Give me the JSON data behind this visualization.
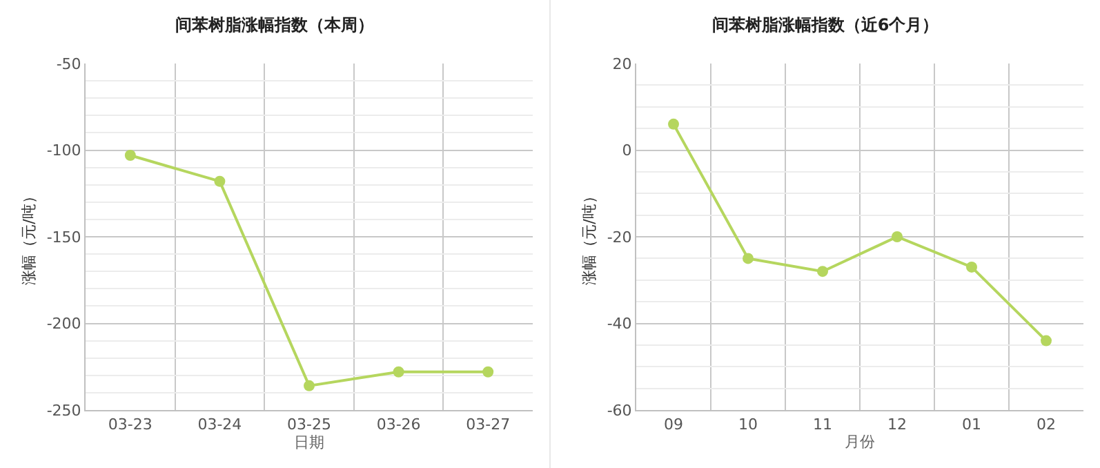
{
  "chart_data": [
    {
      "type": "line",
      "title": "间苯树脂涨幅指数（本周）",
      "xlabel": "日期",
      "ylabel": "涨幅（元/吨）",
      "categories": [
        "03-23",
        "03-24",
        "03-25",
        "03-26",
        "03-27"
      ],
      "series": [
        {
          "color": "#b5d65e",
          "values": [
            -103,
            -118,
            -236,
            -228,
            -228
          ]
        }
      ],
      "ylim": [
        -250,
        -50
      ],
      "yticks": [
        -250,
        -200,
        -150,
        -100,
        -50
      ],
      "grid": true,
      "marker": "circle",
      "line_style": "solid"
    },
    {
      "type": "line",
      "title": "间苯树脂涨幅指数（近6个月）",
      "xlabel": "月份",
      "ylabel": "涨幅（元/吨）",
      "categories": [
        "09",
        "10",
        "11",
        "12",
        "01",
        "02"
      ],
      "series": [
        {
          "color": "#b5d65e",
          "values": [
            6,
            -25,
            -28,
            -20,
            -27,
            -44
          ]
        }
      ],
      "ylim": [
        -60,
        20
      ],
      "yticks": [
        -60,
        -40,
        -20,
        0,
        20
      ],
      "grid": true,
      "marker": "circle",
      "line_style": "solid"
    }
  ]
}
